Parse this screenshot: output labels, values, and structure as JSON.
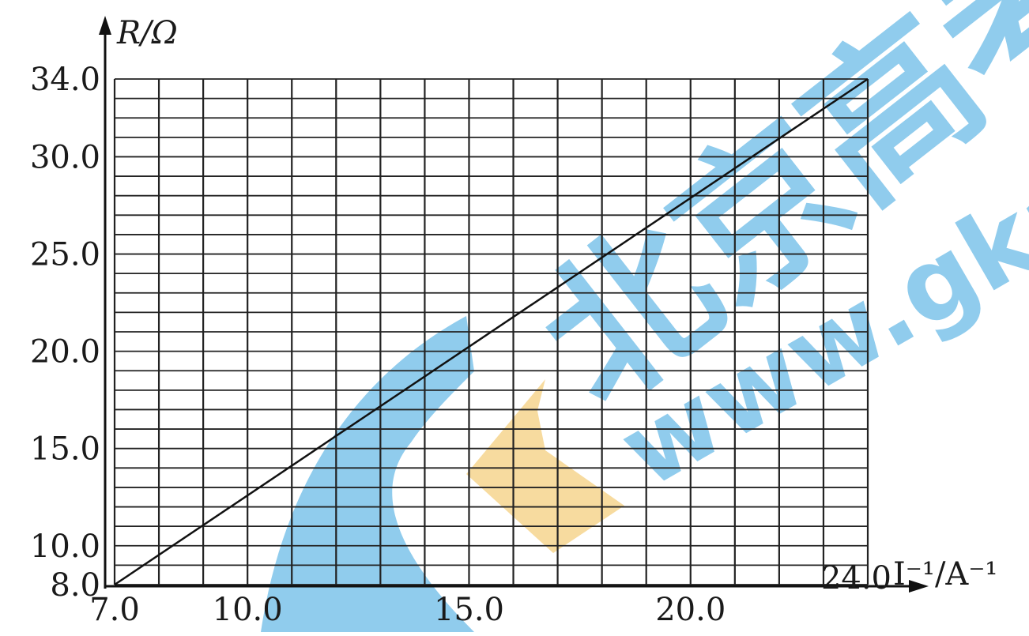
{
  "chart_data": {
    "type": "line",
    "title": "",
    "xlabel": "I⁻¹/A⁻¹",
    "ylabel": "R/Ω",
    "xlim": [
      7.0,
      24.0
    ],
    "ylim": [
      8.0,
      34.0
    ],
    "grid": true,
    "x_ticks": [
      "7.0",
      "10.0",
      "15.0",
      "20.0",
      "24.0"
    ],
    "y_ticks": [
      "8.0",
      "10.0",
      "15.0",
      "20.0",
      "25.0",
      "30.0",
      "34.0"
    ],
    "series": [
      {
        "x": [
          7.0,
          24.0
        ],
        "y": [
          8.0,
          34.0
        ]
      }
    ]
  },
  "watermark": {
    "chinese": "北京高考",
    "url": "www.gkao",
    "colors": {
      "blue": "#7cc3ea",
      "orange": "#f6d58e"
    }
  }
}
